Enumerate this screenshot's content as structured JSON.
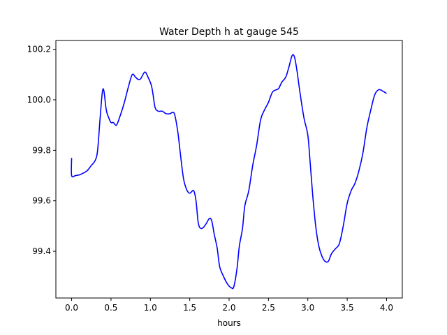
{
  "chart_data": {
    "type": "line",
    "title": "Water Depth h at gauge 545",
    "xlabel": "hours",
    "ylabel": "",
    "xlim": [
      -0.2,
      4.2
    ],
    "ylim": [
      99.215,
      100.235
    ],
    "xticks": [
      0.0,
      0.5,
      1.0,
      1.5,
      2.0,
      2.5,
      3.0,
      3.5,
      4.0
    ],
    "xtick_labels": [
      "0.0",
      "0.5",
      "1.0",
      "1.5",
      "2.0",
      "2.5",
      "3.0",
      "3.5",
      "4.0"
    ],
    "yticks": [
      99.4,
      99.6,
      99.8,
      100.0,
      100.2
    ],
    "ytick_labels": [
      "99.4",
      "99.6",
      "99.8",
      "100.0",
      "100.2"
    ],
    "grid": false,
    "series": [
      {
        "color": "#0000ff",
        "points": [
          [
            0.0,
            99.77
          ],
          [
            0.0,
            99.7
          ],
          [
            0.05,
            99.7
          ],
          [
            0.1,
            99.703
          ],
          [
            0.15,
            99.71
          ],
          [
            0.2,
            99.72
          ],
          [
            0.25,
            99.74
          ],
          [
            0.3,
            99.76
          ],
          [
            0.33,
            99.8
          ],
          [
            0.36,
            99.92
          ],
          [
            0.39,
            100.03
          ],
          [
            0.41,
            100.035
          ],
          [
            0.44,
            99.96
          ],
          [
            0.47,
            99.93
          ],
          [
            0.5,
            99.91
          ],
          [
            0.53,
            99.91
          ],
          [
            0.57,
            99.9
          ],
          [
            0.62,
            99.94
          ],
          [
            0.67,
            99.99
          ],
          [
            0.72,
            100.05
          ],
          [
            0.77,
            100.1
          ],
          [
            0.81,
            100.09
          ],
          [
            0.85,
            100.08
          ],
          [
            0.88,
            100.085
          ],
          [
            0.93,
            100.11
          ],
          [
            0.97,
            100.09
          ],
          [
            1.01,
            100.06
          ],
          [
            1.03,
            100.03
          ],
          [
            1.06,
            99.97
          ],
          [
            1.1,
            99.955
          ],
          [
            1.15,
            99.955
          ],
          [
            1.2,
            99.945
          ],
          [
            1.25,
            99.945
          ],
          [
            1.28,
            99.95
          ],
          [
            1.31,
            99.94
          ],
          [
            1.35,
            99.87
          ],
          [
            1.38,
            99.79
          ],
          [
            1.42,
            99.69
          ],
          [
            1.46,
            99.645
          ],
          [
            1.5,
            99.63
          ],
          [
            1.55,
            99.64
          ],
          [
            1.58,
            99.6
          ],
          [
            1.61,
            99.51
          ],
          [
            1.65,
            99.49
          ],
          [
            1.7,
            99.505
          ],
          [
            1.75,
            99.53
          ],
          [
            1.78,
            99.52
          ],
          [
            1.81,
            99.47
          ],
          [
            1.85,
            99.41
          ],
          [
            1.88,
            99.34
          ],
          [
            1.93,
            99.3
          ],
          [
            1.98,
            99.27
          ],
          [
            2.03,
            99.255
          ],
          [
            2.06,
            99.26
          ],
          [
            2.1,
            99.33
          ],
          [
            2.13,
            99.42
          ],
          [
            2.17,
            99.49
          ],
          [
            2.2,
            99.58
          ],
          [
            2.25,
            99.64
          ],
          [
            2.3,
            99.74
          ],
          [
            2.35,
            99.82
          ],
          [
            2.4,
            99.92
          ],
          [
            2.45,
            99.96
          ],
          [
            2.5,
            99.99
          ],
          [
            2.55,
            100.03
          ],
          [
            2.6,
            100.04
          ],
          [
            2.63,
            100.045
          ],
          [
            2.67,
            100.07
          ],
          [
            2.72,
            100.09
          ],
          [
            2.76,
            100.13
          ],
          [
            2.8,
            100.175
          ],
          [
            2.83,
            100.17
          ],
          [
            2.86,
            100.12
          ],
          [
            2.9,
            100.03
          ],
          [
            2.95,
            99.93
          ],
          [
            3.0,
            99.86
          ],
          [
            3.03,
            99.75
          ],
          [
            3.06,
            99.63
          ],
          [
            3.1,
            99.5
          ],
          [
            3.14,
            99.42
          ],
          [
            3.18,
            99.38
          ],
          [
            3.22,
            99.36
          ],
          [
            3.26,
            99.36
          ],
          [
            3.3,
            99.39
          ],
          [
            3.35,
            99.41
          ],
          [
            3.4,
            99.43
          ],
          [
            3.45,
            99.5
          ],
          [
            3.5,
            99.59
          ],
          [
            3.55,
            99.64
          ],
          [
            3.6,
            99.67
          ],
          [
            3.65,
            99.72
          ],
          [
            3.7,
            99.79
          ],
          [
            3.75,
            99.89
          ],
          [
            3.8,
            99.96
          ],
          [
            3.85,
            100.02
          ],
          [
            3.9,
            100.04
          ],
          [
            3.95,
            100.035
          ],
          [
            4.0,
            100.025
          ]
        ]
      }
    ]
  }
}
